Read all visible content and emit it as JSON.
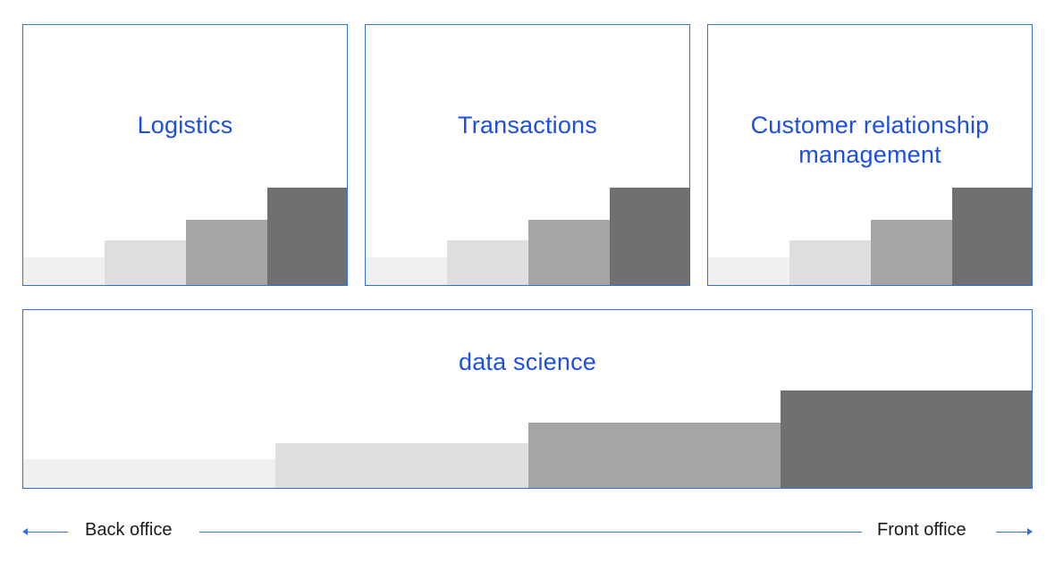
{
  "panels": [
    {
      "title": "Logistics"
    },
    {
      "title": "Transactions"
    },
    {
      "title": "Customer relationship management"
    }
  ],
  "bottom_panel": {
    "title": "data science"
  },
  "axis": {
    "left_label": "Back office",
    "right_label": "Front office"
  },
  "colors": {
    "border": "#2f6fe0",
    "title": "#1d4fe0",
    "step1": "#f0f0f2",
    "step2": "#dedee0",
    "step3": "#a5a5a5",
    "step4": "#707072"
  },
  "step_levels": [
    0.1,
    0.17,
    0.25,
    0.37
  ]
}
